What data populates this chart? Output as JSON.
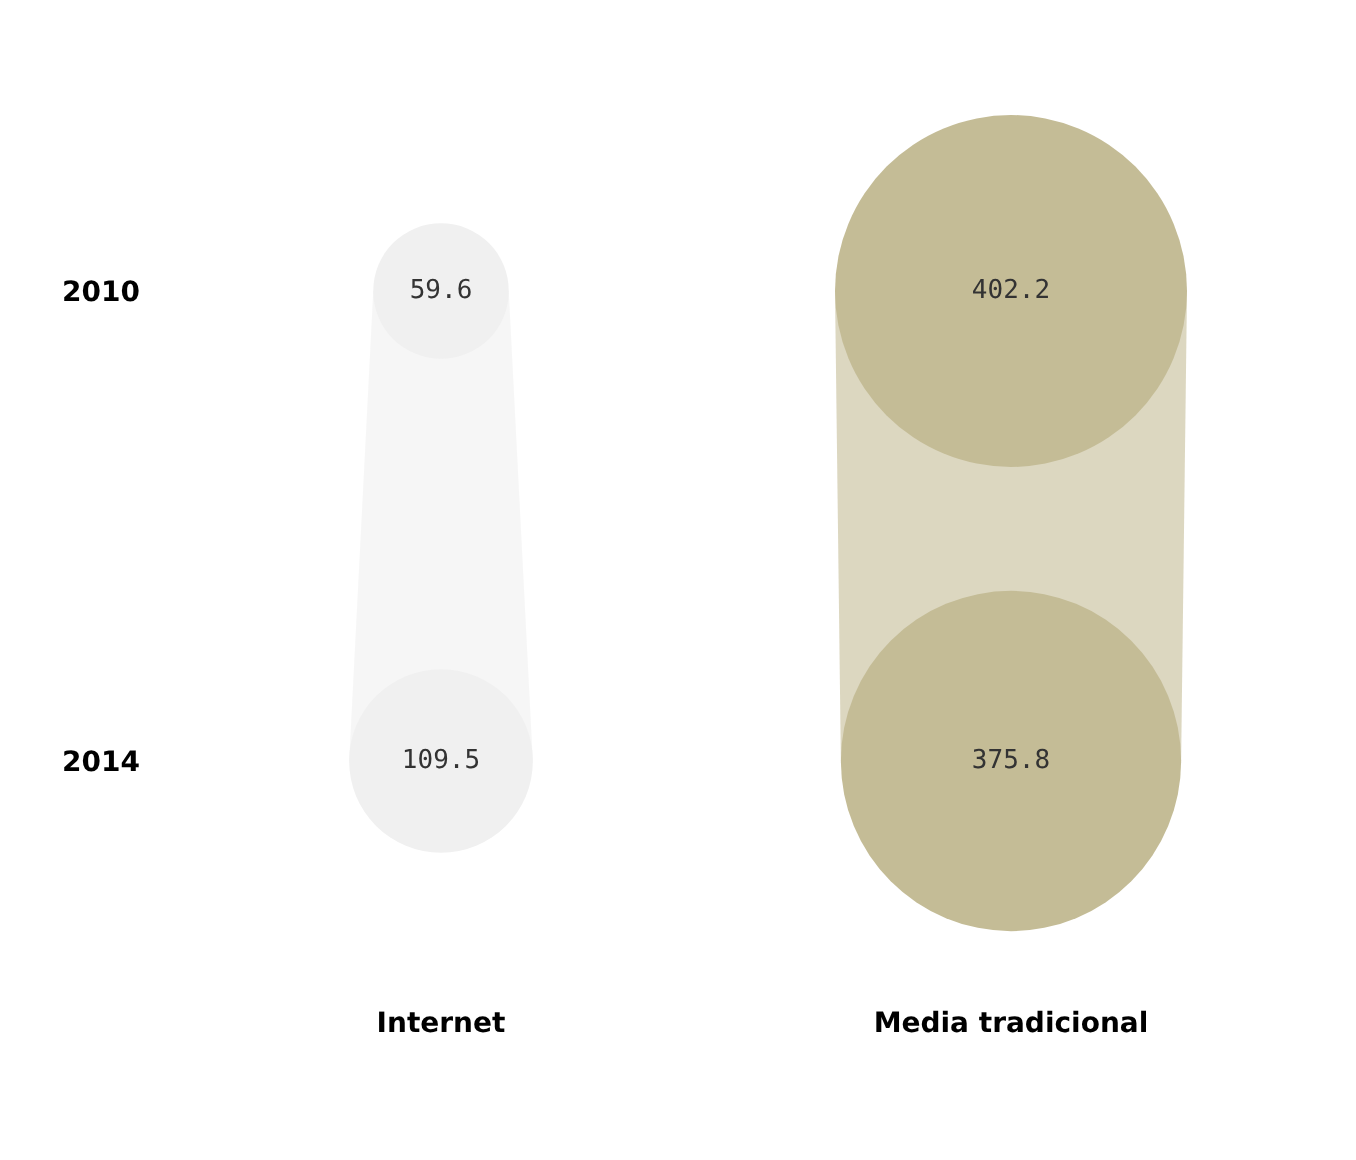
{
  "chart_data": {
    "type": "other",
    "categories": [
      "Internet",
      "Media tradicional"
    ],
    "y_categories": [
      "2010",
      "2014"
    ],
    "series": [
      {
        "values": [
          59.6,
          402.2
        ],
        "colors": [
          "#f0f0f0",
          "#c4bc96"
        ]
      },
      {
        "values": [
          109.5,
          375.8
        ],
        "colors": [
          "#f0f0f0",
          "#c4bc96"
        ]
      }
    ],
    "data_labels": true
  }
}
